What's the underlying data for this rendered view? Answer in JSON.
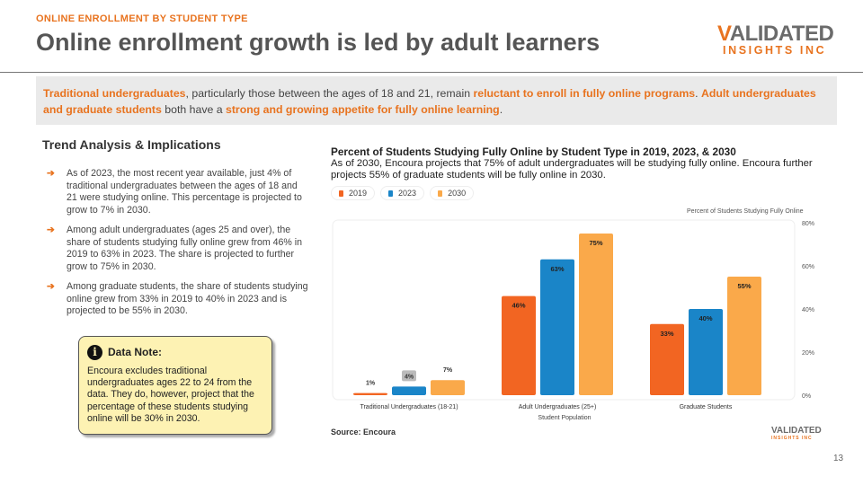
{
  "header": {
    "kicker": "ONLINE ENROLLMENT BY STUDENT TYPE",
    "title": "Online enrollment growth is led by adult learners",
    "logo_l1a": "V",
    "logo_l1b": "ALIDATED",
    "logo_l2": "INSIGHTS INC"
  },
  "callout": {
    "p1": "Traditional undergraduates",
    "p2": ", particularly those between the ages of 18 and 21, remain ",
    "p3": "reluctant to enroll in fully online programs",
    "p4": ". ",
    "p5": "Adult undergraduates and graduate students",
    "p6": " both have a ",
    "p7": "strong and growing appetite for fully online learning",
    "p8": "."
  },
  "analysis": {
    "heading": "Trend Analysis & Implications",
    "bullets": [
      "As of 2023, the most recent year available, just 4% of traditional undergraduates between the ages of 18 and 21 were studying online. This percentage is projected to grow to 7% in 2030.",
      "Among adult undergraduates (ages 25 and over), the share of students studying fully online grew from 46% in 2019 to 63% in 2023. The share is projected to further grow to 75% in 2030.",
      "Among graduate students, the share of students studying online grew from 33% in 2019 to 40% in 2023 and is projected to be 55% in 2030."
    ]
  },
  "note": {
    "title": "Data Note:",
    "text": "Encoura excludes traditional undergraduates ages 22 to 24 from the data. They do, however, project that the percentage of these students studying online will be 30% in 2030."
  },
  "chart_data": {
    "type": "bar",
    "title": "Percent of Students Studying Fully Online by Student Type in 2019, 2023, & 2030",
    "subtitle": "As of 2030, Encoura projects that 75% of adult undergraduates will be studying fully online. Encoura further projects 55% of graduate students will be fully online in 2030.",
    "xlabel": "Student Population",
    "ylabel": "Percent of Students Studying Fully Online",
    "ylim": [
      0,
      80
    ],
    "yticks": [
      "0%",
      "20%",
      "40%",
      "60%",
      "80%"
    ],
    "categories": [
      "Traditional Undergraduates (18-21)",
      "Adult Undergraduates (25+)",
      "Graduate Students"
    ],
    "series": [
      {
        "name": "2019",
        "color": "#f26522",
        "values": [
          1,
          46,
          33
        ]
      },
      {
        "name": "2023",
        "color": "#1a85c8",
        "values": [
          4,
          63,
          40
        ]
      },
      {
        "name": "2030",
        "color": "#faa94a",
        "values": [
          7,
          75,
          55
        ]
      }
    ],
    "legend": "top-left"
  },
  "footer": {
    "source": "Source: Encoura",
    "small_logo": "VALIDATED",
    "small_logo2": "INSIGHTS INC",
    "page": "13"
  }
}
